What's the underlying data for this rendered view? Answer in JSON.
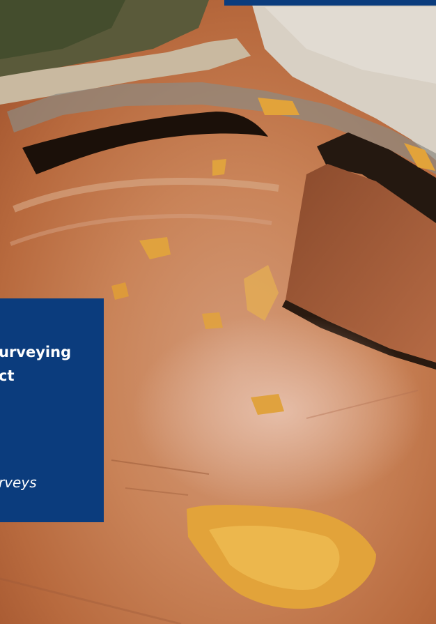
{
  "caption": {
    "title_line1": "urveying",
    "title_line2": "ct",
    "subtitle": "rveys"
  },
  "colors": {
    "brand_blue": "#0b3c7d",
    "soil": "#c0784a",
    "mud": "#e2a33a",
    "shadow": "#1b1009"
  },
  "image": {
    "subject": "aerial-excavation-site-photo"
  }
}
